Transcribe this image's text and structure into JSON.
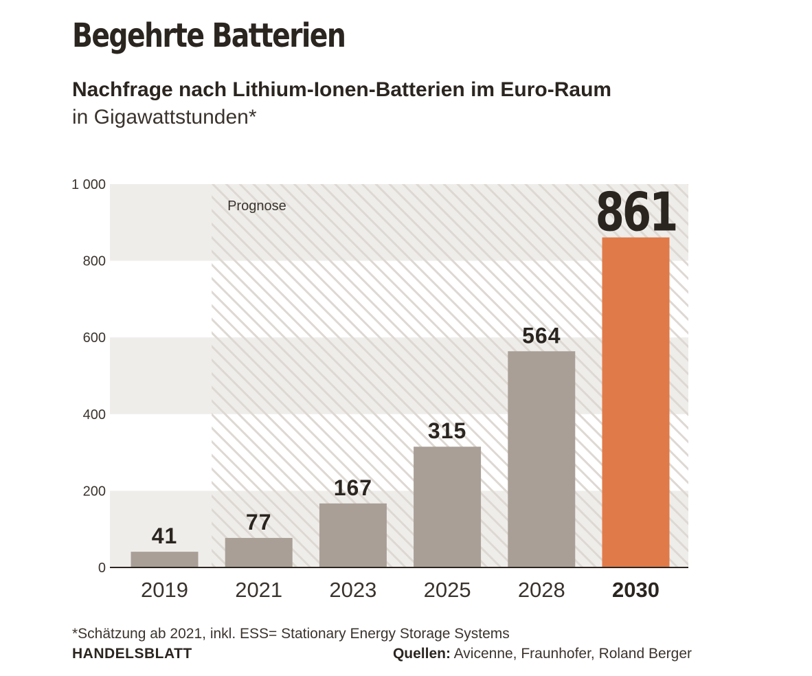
{
  "header": {
    "title": "Begehrte Batterien",
    "subtitle": "Nachfrage nach Lithium-Ionen-Batterien im Euro-Raum",
    "unit": "in Gigawattstunden*"
  },
  "chart_data": {
    "type": "bar",
    "categories": [
      "2019",
      "2021",
      "2023",
      "2025",
      "2028",
      "2030"
    ],
    "values": [
      41,
      77,
      167,
      315,
      564,
      861
    ],
    "value_labels": [
      "41",
      "77",
      "167",
      "315",
      "564",
      "861"
    ],
    "highlight_category": "2030",
    "ylim": [
      0,
      1000
    ],
    "yticks": [
      0,
      200,
      400,
      600,
      800,
      1000
    ],
    "ytick_labels": [
      "0",
      "200",
      "400",
      "600",
      "800",
      "1 000"
    ],
    "grid": "alternating bands",
    "forecast_label": "Prognose",
    "forecast_from": "2021",
    "colors": {
      "bar": "#a99f96",
      "highlight": "#e07a48",
      "band": "#efedea",
      "hatch": "#ddd8d2",
      "text": "#2b2520"
    }
  },
  "footer": {
    "footnote": "*Schätzung ab 2021, inkl. ESS= Stationary Energy Storage Systems",
    "brand": "HANDELSBLATT",
    "sources_label": "Quellen:",
    "sources": "Avicenne, Fraunhofer, Roland Berger"
  }
}
